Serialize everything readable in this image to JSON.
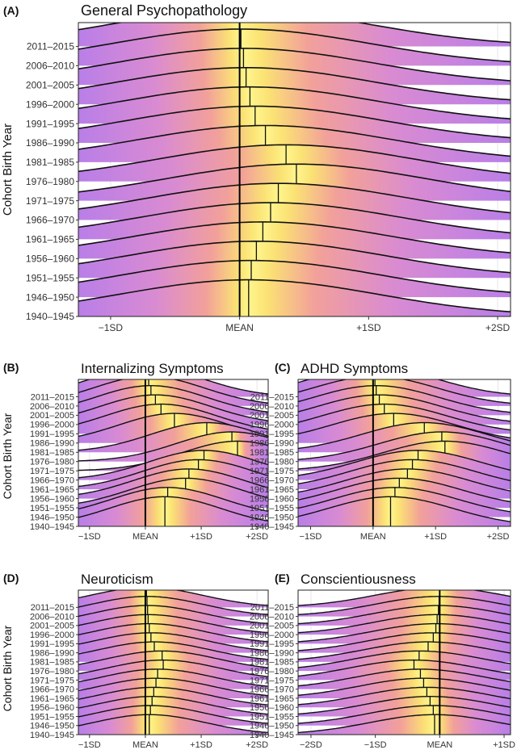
{
  "figure": {
    "y_axis_title": "Cohort Birth Year",
    "cohorts": [
      "2011–2015",
      "2006–2010",
      "2001–2005",
      "1996–2000",
      "1991–1995",
      "1986–1990",
      "1981–1985",
      "1976–1980",
      "1971–1975",
      "1966–1970",
      "1961–1965",
      "1956–1960",
      "1951–1955",
      "1946–1950",
      "1940–1945"
    ]
  },
  "chart_data": [
    {
      "type": "ridgeline",
      "panel_label": "(A)",
      "title": "General Psychopathology",
      "ylabel": "Cohort Birth Year",
      "x_ticks": [
        {
          "value": -1,
          "label": "−1SD"
        },
        {
          "value": 0,
          "label": "MEAN"
        },
        {
          "value": 1,
          "label": "+1SD"
        },
        {
          "value": 2,
          "label": "+2SD"
        }
      ],
      "xlim": [
        -1.25,
        2.1
      ],
      "reference_line": 0,
      "categories": [
        "2011–2015",
        "2006–2010",
        "2001–2005",
        "1996–2000",
        "1991–1995",
        "1986–1990",
        "1981–1985",
        "1976–1980",
        "1971–1975",
        "1966–1970",
        "1961–1965",
        "1956–1960",
        "1951–1955",
        "1946–1950",
        "1940–1945"
      ],
      "means": [
        0.0,
        0.01,
        0.03,
        0.05,
        0.08,
        0.12,
        0.2,
        0.36,
        0.44,
        0.3,
        0.24,
        0.18,
        0.13,
        0.09,
        0.07
      ]
    },
    {
      "type": "ridgeline",
      "panel_label": "(B)",
      "title": "Internalizing Symptoms",
      "ylabel": "Cohort Birth Year",
      "x_ticks": [
        {
          "value": -1,
          "label": "−1SD"
        },
        {
          "value": 0,
          "label": "MEAN"
        },
        {
          "value": 1,
          "label": "+1SD"
        },
        {
          "value": 2,
          "label": "+2SD"
        }
      ],
      "xlim": [
        -1.2,
        2.2
      ],
      "reference_line": 0,
      "categories": [
        "2011–2015",
        "2006–2010",
        "2001–2005",
        "1996–2000",
        "1991–1995",
        "1986–1990",
        "1981–1985",
        "1976–1980",
        "1971–1975",
        "1966–1970",
        "1961–1965",
        "1956–1960",
        "1951–1955",
        "1946–1950",
        "1940–1945"
      ],
      "means": [
        0.03,
        0.06,
        0.1,
        0.18,
        0.28,
        0.52,
        1.1,
        1.55,
        1.65,
        1.05,
        0.95,
        0.78,
        0.72,
        0.4,
        0.35
      ]
    },
    {
      "type": "ridgeline",
      "panel_label": "(C)",
      "title": "ADHD Symptoms",
      "ylabel": "",
      "x_ticks": [
        {
          "value": -1,
          "label": "−1SD"
        },
        {
          "value": 0,
          "label": "MEAN"
        },
        {
          "value": 1,
          "label": "+1SD"
        },
        {
          "value": 2,
          "label": "+2SD"
        }
      ],
      "xlim": [
        -1.2,
        2.2
      ],
      "reference_line": 0,
      "categories": [
        "2011–2015",
        "2006–2010",
        "2001–2005",
        "1996–2000",
        "1991–1995",
        "1986–1990",
        "1981–1985",
        "1976–1980",
        "1971–1975",
        "1966–1970",
        "1961–1965",
        "1956–1960",
        "1951–1955",
        "1946–1950",
        "1940–1945"
      ],
      "means": [
        0.01,
        0.03,
        0.05,
        0.1,
        0.18,
        0.33,
        0.82,
        1.1,
        1.15,
        0.72,
        0.63,
        0.55,
        0.42,
        0.35,
        0.28
      ]
    },
    {
      "type": "ridgeline",
      "panel_label": "(D)",
      "title": "Neuroticism",
      "ylabel": "Cohort Birth Year",
      "x_ticks": [
        {
          "value": -1,
          "label": "−1SD"
        },
        {
          "value": 0,
          "label": "MEAN"
        },
        {
          "value": 1,
          "label": "+1SD"
        },
        {
          "value": 2,
          "label": "+2SD"
        }
      ],
      "xlim": [
        -1.2,
        2.2
      ],
      "reference_line": 0,
      "categories": [
        "2011–2015",
        "2006–2010",
        "2001–2005",
        "1996–2000",
        "1991–1995",
        "1986–1990",
        "1981–1985",
        "1976–1980",
        "1971–1975",
        "1966–1970",
        "1961–1965",
        "1956–1960",
        "1951–1955",
        "1946–1950",
        "1940–1945"
      ],
      "means": [
        0.02,
        0.03,
        0.04,
        0.05,
        0.07,
        0.1,
        0.16,
        0.3,
        0.32,
        0.22,
        0.19,
        0.15,
        0.12,
        0.09,
        0.07
      ]
    },
    {
      "type": "ridgeline",
      "panel_label": "(E)",
      "title": "Conscientiousness",
      "ylabel": "",
      "x_ticks": [
        {
          "value": -2,
          "label": "−2SD"
        },
        {
          "value": -1,
          "label": "−1SD"
        },
        {
          "value": 0,
          "label": "MEAN"
        },
        {
          "value": 1,
          "label": "+1SD"
        }
      ],
      "xlim": [
        -2.2,
        1.1
      ],
      "reference_line": 0,
      "categories": [
        "2011–2015",
        "2006–2010",
        "2001–2005",
        "1996–2000",
        "1991–1995",
        "1986–1990",
        "1981–1985",
        "1976–1980",
        "1971–1975",
        "1966–1970",
        "1961–1965",
        "1956–1960",
        "1951–1955",
        "1946–1950",
        "1940–1945"
      ],
      "means": [
        0.0,
        -0.01,
        -0.02,
        -0.04,
        -0.06,
        -0.1,
        -0.18,
        -0.32,
        -0.4,
        -0.3,
        -0.25,
        -0.2,
        -0.15,
        -0.1,
        -0.08
      ]
    }
  ]
}
